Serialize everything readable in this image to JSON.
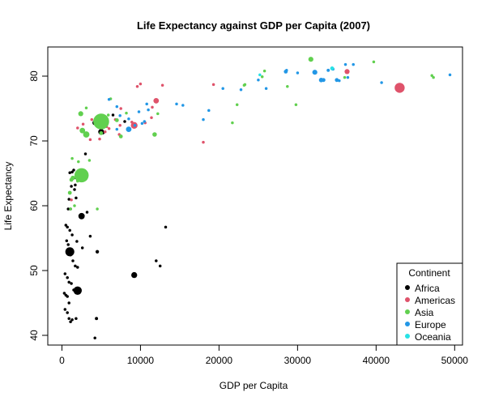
{
  "chart_data": {
    "type": "scatter",
    "title": "Life Expectancy against GDP per Capita (2007)",
    "xlabel": "GDP per Capita",
    "ylabel": "Life Expectancy",
    "xlim": [
      -1800,
      51000
    ],
    "ylim": [
      38.5,
      84.5
    ],
    "xticks": [
      0,
      10000,
      20000,
      30000,
      40000,
      50000
    ],
    "yticks": [
      40,
      50,
      60,
      70,
      80
    ],
    "grid": false,
    "legend": {
      "title": "Continent",
      "position": "bottom-right"
    },
    "colors": {
      "Africa": "#000000",
      "Americas": "#DF536B",
      "Asia": "#61D04F",
      "Europe": "#2297E6",
      "Oceania": "#28E2E5"
    },
    "series": [
      {
        "name": "Africa",
        "points": [
          [
            5000,
            71.4,
            35
          ],
          [
            1000,
            52.9,
            80
          ],
          [
            2000,
            46.9,
            70
          ],
          [
            2500,
            58.4,
            40
          ],
          [
            9200,
            49.3,
            35
          ],
          [
            4200,
            72.8,
            25
          ],
          [
            5200,
            71.3,
            15
          ],
          [
            4500,
            52.9,
            12
          ],
          [
            4400,
            42.6,
            10
          ],
          [
            4200,
            39.6,
            8
          ],
          [
            12000,
            51.5,
            8
          ],
          [
            12500,
            50.7,
            8
          ],
          [
            13200,
            56.7,
            8
          ],
          [
            3600,
            55.3,
            8
          ],
          [
            2600,
            53.5,
            8
          ],
          [
            2300,
            65.1,
            8
          ],
          [
            2300,
            64.5,
            8
          ],
          [
            1800,
            64.3,
            8
          ],
          [
            1500,
            65.5,
            8
          ],
          [
            1300,
            65.2,
            8
          ],
          [
            1000,
            65.1,
            8
          ],
          [
            1700,
            63.2,
            8
          ],
          [
            1200,
            63.0,
            8
          ],
          [
            1800,
            61.2,
            8
          ],
          [
            1600,
            62.5,
            8
          ],
          [
            800,
            59.5,
            8
          ],
          [
            1100,
            59.5,
            8
          ],
          [
            500,
            57.0,
            8
          ],
          [
            700,
            56.7,
            8
          ],
          [
            1000,
            56.2,
            8
          ],
          [
            1300,
            55.5,
            8
          ],
          [
            600,
            54.6,
            8
          ],
          [
            800,
            54.0,
            8
          ],
          [
            1900,
            54.5,
            8
          ],
          [
            1100,
            52.4,
            8
          ],
          [
            1400,
            51.5,
            8
          ],
          [
            1700,
            50.7,
            8
          ],
          [
            2000,
            50.5,
            8
          ],
          [
            400,
            49.5,
            8
          ],
          [
            700,
            48.9,
            8
          ],
          [
            900,
            48.2,
            8
          ],
          [
            1200,
            48.0,
            8
          ],
          [
            1500,
            47.0,
            8
          ],
          [
            300,
            46.5,
            8
          ],
          [
            500,
            46.2,
            8
          ],
          [
            700,
            46.0,
            8
          ],
          [
            900,
            45.0,
            8
          ],
          [
            400,
            44.0,
            8
          ],
          [
            700,
            43.5,
            8
          ],
          [
            900,
            42.6,
            8
          ],
          [
            1300,
            42.4,
            8
          ],
          [
            1800,
            42.6,
            8
          ],
          [
            1100,
            42.1,
            8
          ],
          [
            3200,
            59.0,
            8
          ],
          [
            900,
            61.0,
            8
          ],
          [
            5000,
            72.9,
            8
          ],
          [
            6500,
            74.0,
            8
          ],
          [
            8000,
            73.0,
            8
          ],
          [
            3000,
            68.0,
            8
          ],
          [
            2000,
            64.0,
            8
          ]
        ]
      },
      {
        "name": "Americas",
        "points": [
          [
            43000,
            78.2,
            100
          ],
          [
            9200,
            72.4,
            45
          ],
          [
            12000,
            76.2,
            30
          ],
          [
            36300,
            80.7,
            25
          ],
          [
            9600,
            78.4,
            8
          ],
          [
            10000,
            78.8,
            8
          ],
          [
            12800,
            78.6,
            8
          ],
          [
            11500,
            75.2,
            8
          ],
          [
            7500,
            75.0,
            8
          ],
          [
            6800,
            73.3,
            8
          ],
          [
            8900,
            72.9,
            8
          ],
          [
            5700,
            72.2,
            8
          ],
          [
            6000,
            71.9,
            8
          ],
          [
            7300,
            71.0,
            8
          ],
          [
            5500,
            71.4,
            8
          ],
          [
            4800,
            70.3,
            8
          ],
          [
            3600,
            70.2,
            8
          ],
          [
            2700,
            72.6,
            8
          ],
          [
            3800,
            73.3,
            8
          ],
          [
            2000,
            72.0,
            8
          ],
          [
            1200,
            60.9,
            8
          ],
          [
            18000,
            69.8,
            8
          ],
          [
            19300,
            78.7,
            8
          ],
          [
            10600,
            72.8,
            8
          ],
          [
            7400,
            72.4,
            8
          ],
          [
            11400,
            73.6,
            8
          ]
        ]
      },
      {
        "name": "Asia",
        "points": [
          [
            5000,
            73.0,
            250
          ],
          [
            2500,
            64.7,
            200
          ],
          [
            3100,
            71.0,
            40
          ],
          [
            2600,
            71.6,
            30
          ],
          [
            2400,
            74.2,
            25
          ],
          [
            1400,
            64.3,
            20
          ],
          [
            1200,
            64.0,
            15
          ],
          [
            1000,
            62.0,
            15
          ],
          [
            11800,
            71.0,
            20
          ],
          [
            31700,
            82.6,
            25
          ],
          [
            7000,
            73.2,
            15
          ],
          [
            7500,
            70.7,
            15
          ],
          [
            5000,
            71.2,
            15
          ],
          [
            1100,
            59.5,
            8
          ],
          [
            4500,
            59.5,
            8
          ],
          [
            1300,
            67.3,
            8
          ],
          [
            2100,
            66.8,
            8
          ],
          [
            2000,
            63.8,
            8
          ],
          [
            1600,
            60.0,
            8
          ],
          [
            3100,
            75.1,
            8
          ],
          [
            4800,
            72.9,
            8
          ],
          [
            5900,
            74.0,
            8
          ],
          [
            6200,
            76.5,
            8
          ],
          [
            8200,
            74.3,
            8
          ],
          [
            12200,
            74.2,
            8
          ],
          [
            21700,
            72.8,
            8
          ],
          [
            22300,
            75.6,
            8
          ],
          [
            23200,
            78.6,
            8
          ],
          [
            25500,
            79.9,
            8
          ],
          [
            28700,
            78.4,
            8
          ],
          [
            29800,
            75.6,
            8
          ],
          [
            36000,
            79.8,
            8
          ],
          [
            39700,
            82.2,
            8
          ],
          [
            47100,
            80.1,
            8
          ],
          [
            47300,
            79.8,
            8
          ],
          [
            25800,
            80.8,
            8
          ],
          [
            23300,
            78.7,
            8
          ],
          [
            3500,
            67.0,
            8
          ]
        ]
      },
      {
        "name": "Europe",
        "points": [
          [
            8500,
            71.8,
            30
          ],
          [
            32200,
            80.6,
            25
          ],
          [
            33000,
            79.4,
            20
          ],
          [
            33300,
            79.4,
            15
          ],
          [
            28500,
            80.7,
            15
          ],
          [
            35000,
            79.4,
            15
          ],
          [
            33900,
            80.9,
            10
          ],
          [
            34500,
            81.1,
            10
          ],
          [
            36100,
            81.8,
            8
          ],
          [
            37100,
            81.8,
            8
          ],
          [
            40700,
            79.0,
            8
          ],
          [
            49400,
            80.2,
            8
          ],
          [
            35300,
            79.3,
            8
          ],
          [
            36400,
            79.8,
            8
          ],
          [
            30000,
            80.5,
            8
          ],
          [
            28600,
            80.9,
            8
          ],
          [
            26000,
            78.1,
            8
          ],
          [
            22800,
            77.9,
            8
          ],
          [
            20500,
            78.1,
            8
          ],
          [
            18000,
            73.3,
            8
          ],
          [
            18700,
            74.7,
            8
          ],
          [
            15400,
            75.5,
            8
          ],
          [
            14600,
            75.7,
            8
          ],
          [
            11000,
            74.8,
            8
          ],
          [
            10800,
            75.7,
            8
          ],
          [
            9800,
            74.5,
            8
          ],
          [
            9300,
            72.4,
            8
          ],
          [
            10500,
            73.0,
            8
          ],
          [
            10200,
            72.7,
            8
          ],
          [
            7400,
            73.9,
            8
          ],
          [
            7000,
            71.8,
            8
          ],
          [
            6000,
            76.4,
            8
          ],
          [
            8500,
            73.4,
            8
          ],
          [
            7000,
            75.3,
            8
          ],
          [
            25000,
            79.4,
            8
          ]
        ]
      },
      {
        "name": "Oceania",
        "points": [
          [
            34400,
            81.2,
            15
          ],
          [
            25200,
            80.2,
            8
          ]
        ]
      }
    ]
  }
}
